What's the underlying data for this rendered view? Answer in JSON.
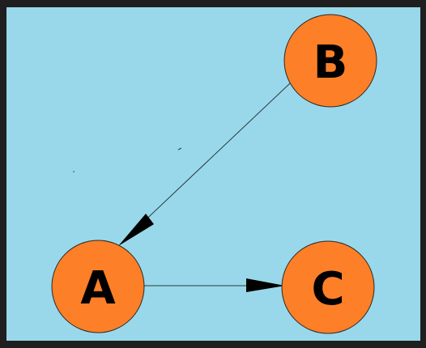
{
  "colors": {
    "background_outer": "#1f1f1f",
    "canvas": "#99d8ea",
    "node_fill": "#fd7f27",
    "node_stroke": "#2a2a2a",
    "edge": "#2b3a3f",
    "label": "#000000"
  },
  "nodes": [
    {
      "id": "A",
      "label": "A"
    },
    {
      "id": "B",
      "label": "B"
    },
    {
      "id": "C",
      "label": "C"
    }
  ],
  "edges": [
    {
      "from": "B",
      "to": "A",
      "directed": true
    },
    {
      "from": "A",
      "to": "C",
      "directed": true
    }
  ]
}
